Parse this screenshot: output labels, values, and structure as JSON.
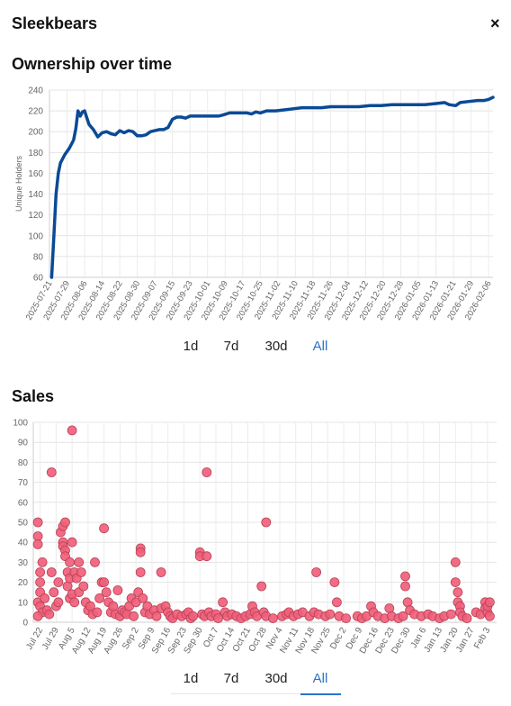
{
  "header": {
    "title": "Sleekbears",
    "close_label": "×"
  },
  "ownership": {
    "title": "Ownership over time",
    "ranges": [
      "1d",
      "7d",
      "30d",
      "All"
    ],
    "active_range": "All"
  },
  "sales": {
    "title": "Sales",
    "ranges": [
      "1d",
      "7d",
      "30d",
      "All"
    ],
    "active_range": "All"
  },
  "colors": {
    "line": "#0a4a96",
    "dots": "#f0607a",
    "dots_stroke": "#b84257",
    "active": "#2a73c9"
  },
  "chart_data": [
    {
      "type": "line",
      "ylabel": "Unique Holders",
      "ylim": [
        60,
        240
      ],
      "yticks": [
        60,
        80,
        100,
        120,
        140,
        160,
        180,
        200,
        220,
        240
      ],
      "xlim": [
        "2025-07-21",
        "2026-02-08"
      ],
      "xticks": [
        "2025-07-21",
        "2025-07-29",
        "2025-08-06",
        "2025-08-14",
        "2025-08-22",
        "2025-08-30",
        "2025-09-07",
        "2025-09-15",
        "2025-09-23",
        "2025-10-01",
        "2025-10-09",
        "2025-10-17",
        "2025-10-25",
        "2025-11-02",
        "2025-11-10",
        "2025-11-18",
        "2025-11-26",
        "2025-12-04",
        "2025-12-12",
        "2025-12-20",
        "2025-12-28",
        "2026-01-05",
        "2026-01-13",
        "2026-01-21",
        "2026-01-29",
        "2026-02-06"
      ],
      "grid": true,
      "series": [
        {
          "points": [
            [
              "2025-07-22",
              60
            ],
            [
              "2025-07-23",
              100
            ],
            [
              "2025-07-24",
              140
            ],
            [
              "2025-07-25",
              160
            ],
            [
              "2025-07-26",
              170
            ],
            [
              "2025-07-28",
              178
            ],
            [
              "2025-07-30",
              184
            ],
            [
              "2025-08-01",
              192
            ],
            [
              "2025-08-02",
              203
            ],
            [
              "2025-08-03",
              220
            ],
            [
              "2025-08-04",
              215
            ],
            [
              "2025-08-05",
              219
            ],
            [
              "2025-08-06",
              220
            ],
            [
              "2025-08-08",
              207
            ],
            [
              "2025-08-10",
              202
            ],
            [
              "2025-08-12",
              195
            ],
            [
              "2025-08-14",
              199
            ],
            [
              "2025-08-16",
              200
            ],
            [
              "2025-08-18",
              198
            ],
            [
              "2025-08-20",
              197
            ],
            [
              "2025-08-22",
              201
            ],
            [
              "2025-08-24",
              199
            ],
            [
              "2025-08-26",
              201
            ],
            [
              "2025-08-28",
              200
            ],
            [
              "2025-08-30",
              196
            ],
            [
              "2025-09-01",
              196
            ],
            [
              "2025-09-03",
              197
            ],
            [
              "2025-09-05",
              200
            ],
            [
              "2025-09-07",
              201
            ],
            [
              "2025-09-09",
              202
            ],
            [
              "2025-09-11",
              202
            ],
            [
              "2025-09-13",
              204
            ],
            [
              "2025-09-15",
              212
            ],
            [
              "2025-09-17",
              214
            ],
            [
              "2025-09-19",
              214
            ],
            [
              "2025-09-21",
              213
            ],
            [
              "2025-09-23",
              215
            ],
            [
              "2025-09-25",
              215
            ],
            [
              "2025-09-27",
              215
            ],
            [
              "2025-09-30",
              215
            ],
            [
              "2025-10-02",
              215
            ],
            [
              "2025-10-04",
              215
            ],
            [
              "2025-10-06",
              215
            ],
            [
              "2025-10-08",
              216
            ],
            [
              "2025-10-11",
              218
            ],
            [
              "2025-10-15",
              218
            ],
            [
              "2025-10-19",
              218
            ],
            [
              "2025-10-21",
              217
            ],
            [
              "2025-10-23",
              219
            ],
            [
              "2025-10-25",
              218
            ],
            [
              "2025-10-28",
              220
            ],
            [
              "2025-11-01",
              220
            ],
            [
              "2025-11-05",
              221
            ],
            [
              "2025-11-09",
              222
            ],
            [
              "2025-11-13",
              223
            ],
            [
              "2025-11-17",
              223
            ],
            [
              "2025-11-22",
              223
            ],
            [
              "2025-11-26",
              224
            ],
            [
              "2025-11-29",
              224
            ],
            [
              "2025-12-04",
              224
            ],
            [
              "2025-12-09",
              224
            ],
            [
              "2025-12-14",
              225
            ],
            [
              "2025-12-19",
              225
            ],
            [
              "2025-12-24",
              226
            ],
            [
              "2025-12-29",
              226
            ],
            [
              "2026-01-03",
              226
            ],
            [
              "2026-01-08",
              226
            ],
            [
              "2026-01-13",
              227
            ],
            [
              "2026-01-17",
              228
            ],
            [
              "2026-01-19",
              226
            ],
            [
              "2026-01-22",
              225
            ],
            [
              "2026-01-24",
              228
            ],
            [
              "2026-01-28",
              229
            ],
            [
              "2026-02-01",
              230
            ],
            [
              "2026-02-04",
              230
            ],
            [
              "2026-02-06",
              231
            ],
            [
              "2026-02-08",
              233
            ]
          ]
        }
      ]
    },
    {
      "type": "scatter",
      "ylim": [
        0,
        100
      ],
      "yticks": [
        0,
        10,
        20,
        30,
        40,
        50,
        60,
        70,
        80,
        90,
        100
      ],
      "xlim": [
        "2025-07-19",
        "2026-02-07"
      ],
      "xticks": [
        [
          "2025-07-22",
          "Jul 22"
        ],
        [
          "2025-07-29",
          "Jul 29"
        ],
        [
          "2025-08-05",
          "Aug 5"
        ],
        [
          "2025-08-12",
          "Aug 12"
        ],
        [
          "2025-08-19",
          "Aug 19"
        ],
        [
          "2025-08-26",
          "Aug 26"
        ],
        [
          "2025-09-02",
          "Sep 2"
        ],
        [
          "2025-09-09",
          "Sep 9"
        ],
        [
          "2025-09-16",
          "Sep 16"
        ],
        [
          "2025-09-23",
          "Sep 23"
        ],
        [
          "2025-09-30",
          "Sep 30"
        ],
        [
          "2025-10-07",
          "Oct 7"
        ],
        [
          "2025-10-14",
          "Oct 14"
        ],
        [
          "2025-10-21",
          "Oct 21"
        ],
        [
          "2025-10-28",
          "Oct 28"
        ],
        [
          "2025-11-04",
          "Nov 4"
        ],
        [
          "2025-11-11",
          "Nov 11"
        ],
        [
          "2025-11-18",
          "Nov 18"
        ],
        [
          "2025-11-25",
          "Nov 25"
        ],
        [
          "2025-12-02",
          "Dec 2"
        ],
        [
          "2025-12-09",
          "Dec 9"
        ],
        [
          "2025-12-16",
          "Dec 16"
        ],
        [
          "2025-12-23",
          "Dec 23"
        ],
        [
          "2025-12-30",
          "Dec 30"
        ],
        [
          "2026-01-06",
          "Jan 6"
        ],
        [
          "2026-01-13",
          "Jan 13"
        ],
        [
          "2026-01-20",
          "Jan 20"
        ],
        [
          "2026-01-27",
          "Jan 27"
        ],
        [
          "2026-02-03",
          "Feb 3"
        ]
      ],
      "grid": true,
      "points": [
        [
          "2025-07-21",
          50
        ],
        [
          "2025-07-21",
          43
        ],
        [
          "2025-07-21",
          39
        ],
        [
          "2025-07-22",
          25
        ],
        [
          "2025-07-22",
          20
        ],
        [
          "2025-07-22",
          15
        ],
        [
          "2025-07-21",
          10
        ],
        [
          "2025-07-22",
          8
        ],
        [
          "2025-07-23",
          5
        ],
        [
          "2025-07-21",
          3
        ],
        [
          "2025-07-23",
          30
        ],
        [
          "2025-07-24",
          12
        ],
        [
          "2025-07-25",
          6
        ],
        [
          "2025-07-26",
          4
        ],
        [
          "2025-07-27",
          75
        ],
        [
          "2025-07-27",
          25
        ],
        [
          "2025-07-28",
          15
        ],
        [
          "2025-07-29",
          8
        ],
        [
          "2025-07-30",
          20
        ],
        [
          "2025-07-30",
          10
        ],
        [
          "2025-07-31",
          45
        ],
        [
          "2025-08-01",
          48
        ],
        [
          "2025-08-01",
          40
        ],
        [
          "2025-08-01",
          38
        ],
        [
          "2025-08-02",
          50
        ],
        [
          "2025-08-02",
          36
        ],
        [
          "2025-08-02",
          33
        ],
        [
          "2025-08-03",
          25
        ],
        [
          "2025-08-03",
          18
        ],
        [
          "2025-08-04",
          30
        ],
        [
          "2025-08-04",
          22
        ],
        [
          "2025-08-04",
          12
        ],
        [
          "2025-08-05",
          96
        ],
        [
          "2025-08-05",
          40
        ],
        [
          "2025-08-05",
          14
        ],
        [
          "2025-08-06",
          25
        ],
        [
          "2025-08-06",
          10
        ],
        [
          "2025-08-07",
          22
        ],
        [
          "2025-08-08",
          30
        ],
        [
          "2025-08-08",
          15
        ],
        [
          "2025-08-09",
          25
        ],
        [
          "2025-08-10",
          18
        ],
        [
          "2025-08-11",
          10
        ],
        [
          "2025-08-12",
          6
        ],
        [
          "2025-08-13",
          8
        ],
        [
          "2025-08-14",
          4
        ],
        [
          "2025-08-15",
          30
        ],
        [
          "2025-08-16",
          5
        ],
        [
          "2025-08-17",
          12
        ],
        [
          "2025-08-18",
          20
        ],
        [
          "2025-08-19",
          47
        ],
        [
          "2025-08-19",
          20
        ],
        [
          "2025-08-20",
          15
        ],
        [
          "2025-08-21",
          10
        ],
        [
          "2025-08-22",
          5
        ],
        [
          "2025-08-23",
          8
        ],
        [
          "2025-08-24",
          4
        ],
        [
          "2025-08-25",
          16
        ],
        [
          "2025-08-26",
          3
        ],
        [
          "2025-08-27",
          6
        ],
        [
          "2025-08-28",
          5
        ],
        [
          "2025-08-29",
          4
        ],
        [
          "2025-08-30",
          8
        ],
        [
          "2025-08-31",
          12
        ],
        [
          "2025-09-01",
          3
        ],
        [
          "2025-09-02",
          10
        ],
        [
          "2025-09-03",
          15
        ],
        [
          "2025-09-04",
          37
        ],
        [
          "2025-09-04",
          35
        ],
        [
          "2025-09-04",
          25
        ],
        [
          "2025-09-05",
          12
        ],
        [
          "2025-09-06",
          5
        ],
        [
          "2025-09-07",
          8
        ],
        [
          "2025-09-08",
          4
        ],
        [
          "2025-09-10",
          6
        ],
        [
          "2025-09-11",
          3
        ],
        [
          "2025-09-13",
          25
        ],
        [
          "2025-09-13",
          7
        ],
        [
          "2025-09-15",
          8
        ],
        [
          "2025-09-16",
          5
        ],
        [
          "2025-09-17",
          3
        ],
        [
          "2025-09-18",
          2
        ],
        [
          "2025-09-20",
          4
        ],
        [
          "2025-09-22",
          3
        ],
        [
          "2025-09-24",
          4
        ],
        [
          "2025-09-25",
          5
        ],
        [
          "2025-09-26",
          2
        ],
        [
          "2025-09-27",
          3
        ],
        [
          "2025-09-30",
          35
        ],
        [
          "2025-09-30",
          33
        ],
        [
          "2025-10-01",
          4
        ],
        [
          "2025-10-02",
          3
        ],
        [
          "2025-10-03",
          75
        ],
        [
          "2025-10-03",
          33
        ],
        [
          "2025-10-04",
          5
        ],
        [
          "2025-10-05",
          3
        ],
        [
          "2025-10-07",
          4
        ],
        [
          "2025-10-08",
          2
        ],
        [
          "2025-10-10",
          10
        ],
        [
          "2025-10-11",
          5
        ],
        [
          "2025-10-12",
          3
        ],
        [
          "2025-10-14",
          4
        ],
        [
          "2025-10-16",
          3
        ],
        [
          "2025-10-18",
          2
        ],
        [
          "2025-10-20",
          3
        ],
        [
          "2025-10-22",
          4
        ],
        [
          "2025-10-23",
          8
        ],
        [
          "2025-10-24",
          5
        ],
        [
          "2025-10-25",
          3
        ],
        [
          "2025-10-27",
          18
        ],
        [
          "2025-10-28",
          5
        ],
        [
          "2025-10-29",
          50
        ],
        [
          "2025-10-29",
          3
        ],
        [
          "2025-11-01",
          2
        ],
        [
          "2025-11-05",
          3
        ],
        [
          "2025-11-07",
          4
        ],
        [
          "2025-11-08",
          5
        ],
        [
          "2025-11-10",
          3
        ],
        [
          "2025-11-12",
          4
        ],
        [
          "2025-11-14",
          5
        ],
        [
          "2025-11-17",
          3
        ],
        [
          "2025-11-19",
          5
        ],
        [
          "2025-11-20",
          25
        ],
        [
          "2025-11-21",
          4
        ],
        [
          "2025-11-24",
          3
        ],
        [
          "2025-11-26",
          4
        ],
        [
          "2025-11-28",
          20
        ],
        [
          "2025-11-29",
          10
        ],
        [
          "2025-11-30",
          3
        ],
        [
          "2025-12-03",
          2
        ],
        [
          "2025-12-08",
          3
        ],
        [
          "2025-12-10",
          2
        ],
        [
          "2025-12-12",
          3
        ],
        [
          "2025-12-14",
          8
        ],
        [
          "2025-12-15",
          5
        ],
        [
          "2025-12-17",
          3
        ],
        [
          "2025-12-20",
          2
        ],
        [
          "2025-12-22",
          7
        ],
        [
          "2025-12-23",
          3
        ],
        [
          "2025-12-26",
          2
        ],
        [
          "2025-12-28",
          3
        ],
        [
          "2025-12-29",
          23
        ],
        [
          "2025-12-29",
          18
        ],
        [
          "2025-12-30",
          10
        ],
        [
          "2025-12-31",
          6
        ],
        [
          "2026-01-02",
          4
        ],
        [
          "2026-01-05",
          3
        ],
        [
          "2026-01-08",
          4
        ],
        [
          "2026-01-10",
          3
        ],
        [
          "2026-01-13",
          2
        ],
        [
          "2026-01-15",
          3
        ],
        [
          "2026-01-18",
          4
        ],
        [
          "2026-01-20",
          30
        ],
        [
          "2026-01-20",
          20
        ],
        [
          "2026-01-21",
          15
        ],
        [
          "2026-01-21",
          10
        ],
        [
          "2026-01-22",
          8
        ],
        [
          "2026-01-22",
          5
        ],
        [
          "2026-01-23",
          3
        ],
        [
          "2026-01-25",
          2
        ],
        [
          "2026-01-29",
          5
        ],
        [
          "2026-01-31",
          4
        ],
        [
          "2026-02-02",
          10
        ],
        [
          "2026-02-02",
          7
        ],
        [
          "2026-02-03",
          5
        ],
        [
          "2026-02-03",
          8
        ],
        [
          "2026-02-04",
          3
        ],
        [
          "2026-02-04",
          10
        ]
      ]
    }
  ]
}
